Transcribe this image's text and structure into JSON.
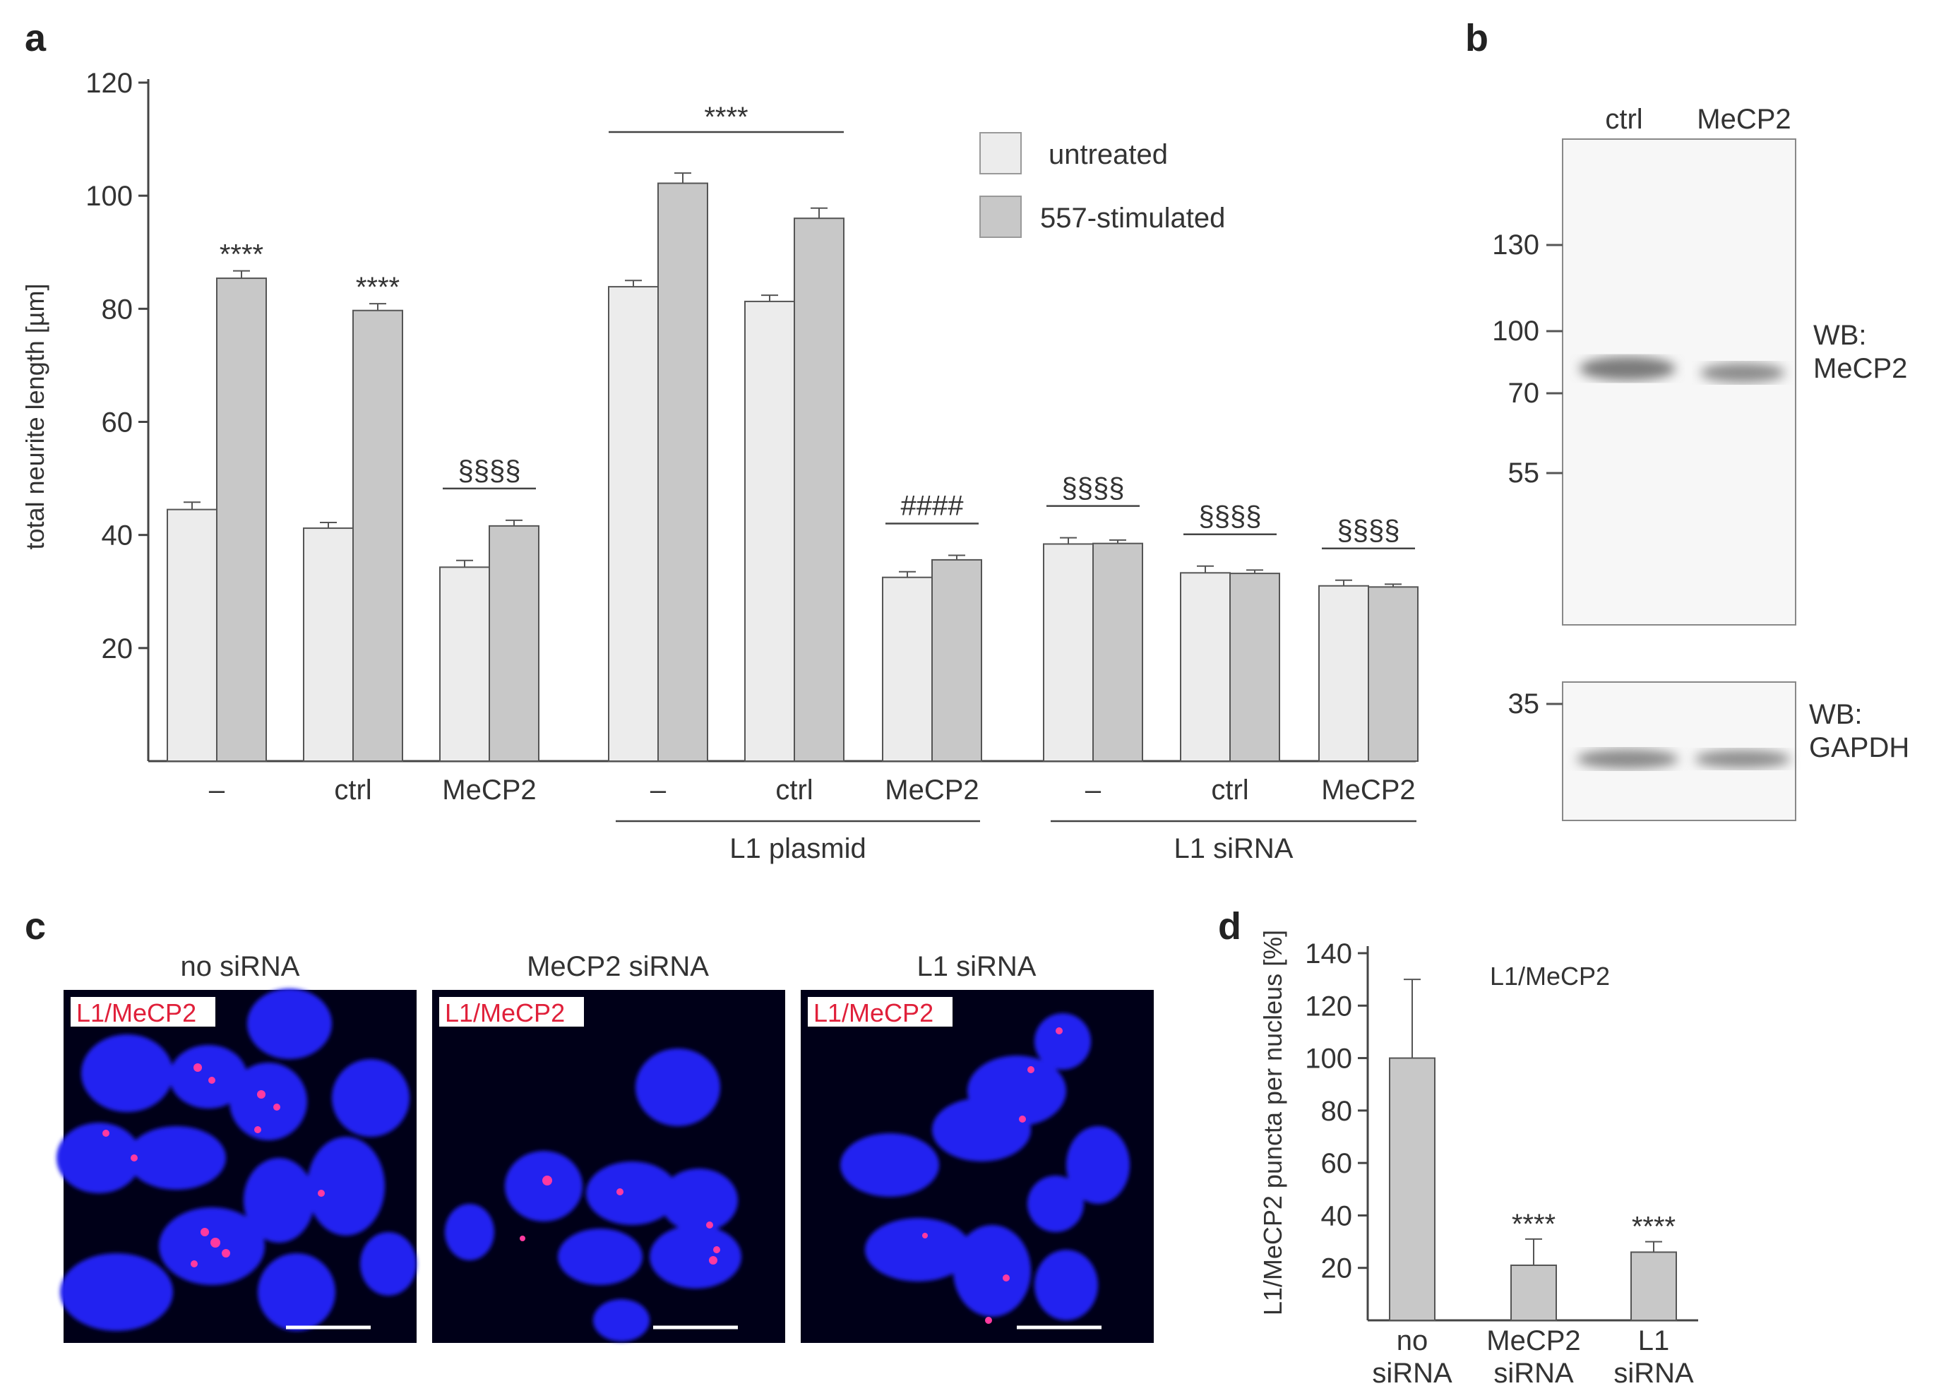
{
  "panels": {
    "a": "a",
    "b": "b",
    "c": "c",
    "d": "d"
  },
  "colors": {
    "untreated": "#ececec",
    "stimulated": "#c8c8c8",
    "axis": "#444444",
    "nucleus": "#1c1ce8",
    "puncta": "#ff2a8a",
    "label_text": "#e0203a"
  },
  "chart_data": [
    {
      "id": "a",
      "type": "bar",
      "ylabel": "total neurite length [µm]",
      "ylim": [
        0,
        120
      ],
      "yticks": [
        20,
        40,
        60,
        80,
        100,
        120
      ],
      "legend": {
        "placement": "top-right",
        "entries": [
          "untreated",
          "557-stimulated"
        ]
      },
      "categories": [
        "–",
        "ctrl",
        "MeCP2",
        "–",
        "ctrl",
        "MeCP2",
        "–",
        "ctrl",
        "MeCP2"
      ],
      "series": [
        {
          "name": "untreated",
          "values": [
            44.5,
            41.2,
            34.3,
            83.9,
            81.3,
            32.5,
            38.4,
            33.3,
            31.0
          ],
          "errors": [
            1.3,
            1.0,
            1.2,
            1.1,
            1.1,
            1.0,
            1.1,
            1.2,
            1.0
          ]
        },
        {
          "name": "557-stimulated",
          "values": [
            85.4,
            79.7,
            41.6,
            102.2,
            96.0,
            35.6,
            38.5,
            33.2,
            30.8
          ],
          "errors": [
            1.3,
            1.2,
            1.0,
            1.8,
            1.8,
            0.8,
            0.6,
            0.6,
            0.5
          ]
        }
      ],
      "groups": [
        {
          "label": "L1 plasmid",
          "from": 3,
          "to": 5
        },
        {
          "label": "L1 siRNA",
          "from": 6,
          "to": 8
        }
      ],
      "significance": [
        {
          "cat": 0,
          "text": "****"
        },
        {
          "cat": 1,
          "text": "****"
        },
        {
          "cat": 2,
          "text": "§§§§"
        },
        {
          "span": [
            3,
            4
          ],
          "text": "****"
        },
        {
          "cat": 5,
          "text": "####"
        },
        {
          "cat": 6,
          "text": "§§§§"
        },
        {
          "cat": 7,
          "text": "§§§§"
        },
        {
          "cat": 8,
          "text": "§§§§"
        }
      ]
    },
    {
      "id": "d",
      "type": "bar",
      "title": "L1/MeCP2",
      "ylabel": "L1/MeCP2 puncta per nucleus [%]",
      "ylim": [
        0,
        140
      ],
      "yticks": [
        20,
        40,
        60,
        80,
        100,
        120,
        140
      ],
      "categories": [
        [
          "no",
          "siRNA"
        ],
        [
          "MeCP2",
          "siRNA"
        ],
        [
          "L1",
          "siRNA"
        ]
      ],
      "values": [
        100,
        21,
        26
      ],
      "errors": [
        30,
        10,
        4
      ],
      "significance": [
        "",
        "****",
        "****"
      ]
    }
  ],
  "blot": {
    "lanes": [
      "ctrl",
      "MeCP2"
    ],
    "markers_top": [
      "130",
      "100",
      "70",
      "55"
    ],
    "marker_bottom": "35",
    "label_top": [
      "WB:",
      "MeCP2"
    ],
    "label_bottom": [
      "WB:",
      "GAPDH"
    ]
  },
  "micrographs": [
    {
      "title": "no siRNA",
      "tag": "L1/MeCP2"
    },
    {
      "title": "MeCP2 siRNA",
      "tag": "L1/MeCP2"
    },
    {
      "title": "L1 siRNA",
      "tag": "L1/MeCP2"
    }
  ]
}
